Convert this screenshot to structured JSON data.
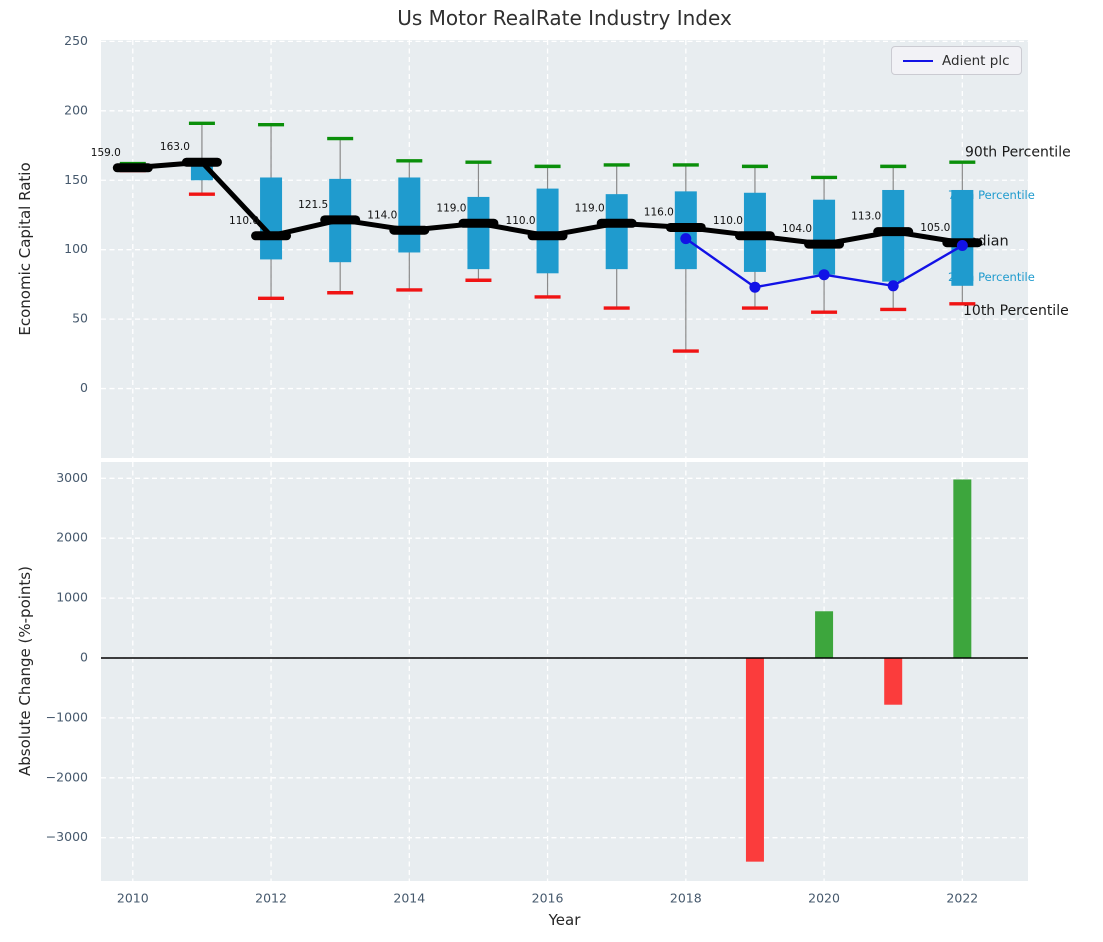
{
  "title": "Us Motor RealRate Industry Index",
  "chart_data": [
    {
      "type": "boxplot",
      "title": "Us Motor RealRate Industry Index",
      "xlabel": "Year",
      "ylabel": "Economic Capital Ratio",
      "ylim": [
        -50,
        251
      ],
      "xlim": [
        2009.54,
        2022.95
      ],
      "yticks": [
        0,
        50,
        100,
        150,
        200,
        250
      ],
      "xticks": [
        2010,
        2012,
        2014,
        2016,
        2018,
        2020,
        2022
      ],
      "grid": true,
      "years": [
        2010,
        2011,
        2012,
        2013,
        2014,
        2015,
        2016,
        2017,
        2018,
        2019,
        2020,
        2021,
        2022
      ],
      "median": [
        159,
        163,
        110,
        121.5,
        114,
        119,
        110,
        119,
        116,
        110,
        104,
        113,
        105
      ],
      "median_labels": [
        "159.0",
        "163.0",
        "110.0",
        "121.5",
        "114.0",
        "119.0",
        "110.0",
        "119.0",
        "116.0",
        "110.0",
        "104.0",
        "113.0",
        "105.0"
      ],
      "q75": [
        160.5,
        163.5,
        152,
        151,
        152,
        138,
        144,
        140,
        142,
        141,
        136,
        143,
        143
      ],
      "q25": [
        157,
        150,
        93,
        91,
        98,
        86,
        83,
        86,
        86,
        84,
        82,
        77,
        74
      ],
      "p90": [
        162,
        191,
        190,
        180,
        164,
        163,
        160,
        161,
        161,
        160,
        152,
        160,
        163
      ],
      "p10": [
        157,
        140,
        65,
        69,
        71,
        78,
        66,
        58,
        27,
        58,
        55,
        57,
        61
      ],
      "annotations": [
        {
          "text": "90th Percentile",
          "value": 170,
          "color": "#1a1a1a"
        },
        {
          "text": "75th Percentile",
          "value": 139,
          "color": "#1f9bce"
        },
        {
          "text": "Median",
          "value": 106,
          "color": "#1a1a1a"
        },
        {
          "text": "25th Percentile",
          "value": 80,
          "color": "#1f9bce"
        },
        {
          "text": "10th Percentile",
          "value": 56,
          "color": "#1a1a1a"
        }
      ],
      "series": [
        {
          "name": "Adient plc",
          "x": [
            2018,
            2019,
            2020,
            2021,
            2022
          ],
          "y": [
            108,
            73,
            82,
            74,
            103
          ]
        }
      ],
      "legend_position": "upper right"
    },
    {
      "type": "bar",
      "xlabel": "Year",
      "ylabel": "Absolute Change (%-points)",
      "ylim": [
        -3723,
        3272
      ],
      "xlim": [
        2009.54,
        2022.95
      ],
      "yticks": [
        -3000,
        -2000,
        -1000,
        0,
        1000,
        2000,
        3000
      ],
      "xticks": [
        2010,
        2012,
        2014,
        2016,
        2018,
        2020,
        2022
      ],
      "grid": true,
      "x": [
        2019,
        2020,
        2021,
        2022
      ],
      "values": [
        -3400,
        780,
        -780,
        2980
      ]
    }
  ],
  "colors": {
    "box": "#1f9bce",
    "whisker": "#8a8a8a",
    "cap_high": "#0a8f0a",
    "cap_low": "#f01414",
    "median": "#000000",
    "company_line": "#1212e6",
    "bar_up": "#3da63d",
    "bar_down": "#fb3c3c",
    "plot_bg": "#e8edf0",
    "grid": "#ffffff",
    "tick_label": "#46596d",
    "axis_text": "#262626"
  }
}
